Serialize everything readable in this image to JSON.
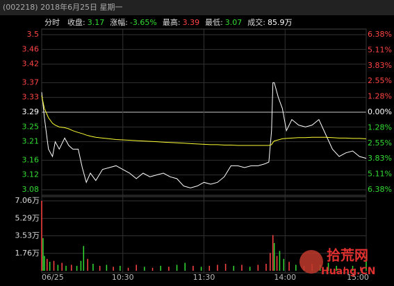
{
  "header": {
    "title": "(002218) 2018年6月25日 星期一"
  },
  "info": [
    {
      "label": "分时",
      "color": "#ffffff"
    },
    {
      "label": "收盘:",
      "value": "3.17",
      "color": "#33dd33"
    },
    {
      "label": "涨幅:",
      "value": "-3.65%",
      "color": "#33dd33"
    },
    {
      "label": "最高:",
      "value": "3.39",
      "color": "#ff4444"
    },
    {
      "label": "最低:",
      "value": "3.07",
      "color": "#33dd33"
    },
    {
      "label": "成交:",
      "value": "85.9万",
      "color": "#ffffff"
    }
  ],
  "watermark": {
    "main": "拾荒网",
    "sub": "Huang.CN"
  },
  "chart_data": [
    {
      "type": "line",
      "x": [
        0,
        2,
        5,
        8,
        10,
        13,
        17,
        20,
        23,
        27,
        30,
        33,
        36,
        40,
        45,
        50,
        55,
        60,
        65,
        70,
        75,
        80,
        85,
        90,
        95,
        100,
        105,
        110,
        115,
        120,
        125,
        130,
        135,
        140,
        145,
        150,
        155,
        160,
        165,
        168,
        170,
        171,
        172,
        175,
        178,
        181,
        185,
        190,
        195,
        200,
        205,
        210,
        215,
        220,
        225,
        230,
        235,
        240
      ],
      "series": [
        {
          "color": "#ffffff",
          "values": [
            3.344,
            3.275,
            3.19,
            3.17,
            3.21,
            3.19,
            3.22,
            3.2,
            3.19,
            3.19,
            3.14,
            3.1,
            3.125,
            3.105,
            3.135,
            3.14,
            3.145,
            3.135,
            3.125,
            3.11,
            3.125,
            3.115,
            3.12,
            3.125,
            3.115,
            3.11,
            3.09,
            3.085,
            3.09,
            3.1,
            3.095,
            3.1,
            3.115,
            3.145,
            3.145,
            3.14,
            3.145,
            3.145,
            3.15,
            3.155,
            3.24,
            3.37,
            3.37,
            3.33,
            3.3,
            3.24,
            3.27,
            3.255,
            3.25,
            3.255,
            3.27,
            3.23,
            3.19,
            3.17,
            3.18,
            3.185,
            3.17,
            3.165
          ]
        },
        {
          "color": "#ffff33",
          "values": [
            3.335,
            3.3,
            3.275,
            3.26,
            3.255,
            3.25,
            3.248,
            3.245,
            3.24,
            3.235,
            3.232,
            3.228,
            3.225,
            3.222,
            3.22,
            3.218,
            3.216,
            3.215,
            3.214,
            3.213,
            3.212,
            3.211,
            3.21,
            3.209,
            3.208,
            3.207,
            3.206,
            3.205,
            3.204,
            3.203,
            3.202,
            3.202,
            3.201,
            3.201,
            3.2,
            3.2,
            3.2,
            3.2,
            3.2,
            3.2,
            3.202,
            3.208,
            3.212,
            3.215,
            3.218,
            3.219,
            3.22,
            3.221,
            3.221,
            3.222,
            3.222,
            3.222,
            3.221,
            3.22,
            3.22,
            3.219,
            3.219,
            3.218
          ]
        }
      ],
      "xlim": [
        0,
        240
      ],
      "xticks": [
        {
          "value": 0,
          "label": "06/25"
        },
        {
          "value": 60,
          "label": "10:30"
        },
        {
          "value": 120,
          "label": "11:30"
        },
        {
          "value": 180,
          "label": "14:00"
        },
        {
          "value": 240,
          "label": "15:00"
        }
      ],
      "ylim": [
        3.08,
        3.5
      ],
      "yticks": [
        3.5,
        3.46,
        3.42,
        3.37,
        3.33,
        3.29,
        3.25,
        3.21,
        3.16,
        3.12,
        3.08
      ],
      "y2lim": [
        -6.38,
        6.38
      ],
      "y2ticks": [
        {
          "value": 6.38,
          "label": "6.38%"
        },
        {
          "value": 5.11,
          "label": "5.11%"
        },
        {
          "value": 3.83,
          "label": "3.83%"
        },
        {
          "value": 2.55,
          "label": "2.55%"
        },
        {
          "value": 1.28,
          "label": "1.28%"
        },
        {
          "value": 0,
          "label": "0.00%"
        },
        {
          "value": -1.28,
          "label": "1.28%"
        },
        {
          "value": -2.55,
          "label": "2.55%"
        },
        {
          "value": -3.83,
          "label": "3.83%"
        },
        {
          "value": -5.11,
          "label": "5.11%"
        },
        {
          "value": -6.38,
          "label": "6.38%"
        }
      ],
      "up_color": "#ff4444",
      "down_color": "#33dd33",
      "flat_color": "#ffffff",
      "grid": true
    },
    {
      "type": "bar",
      "x": [
        0,
        1,
        2,
        4,
        6,
        9,
        12,
        15,
        18,
        22,
        26,
        29,
        31,
        34,
        38,
        43,
        48,
        53,
        58,
        64,
        70,
        76,
        82,
        88,
        94,
        100,
        106,
        112,
        118,
        124,
        130,
        136,
        142,
        148,
        154,
        160,
        166,
        169,
        171,
        172,
        174,
        176,
        179,
        183,
        188,
        194,
        200,
        206,
        212,
        218,
        224,
        230,
        236,
        240
      ],
      "values": [
        7.06,
        3.3,
        1.5,
        1.2,
        0.9,
        1.0,
        0.6,
        0.8,
        0.5,
        0.6,
        0.5,
        1.0,
        2.5,
        1.2,
        0.7,
        0.5,
        0.6,
        0.4,
        0.5,
        0.3,
        0.6,
        0.4,
        0.3,
        0.5,
        0.4,
        0.6,
        0.8,
        0.5,
        0.4,
        0.5,
        0.6,
        0.7,
        0.5,
        0.6,
        0.4,
        0.6,
        0.7,
        1.8,
        3.6,
        2.8,
        1.5,
        2.0,
        1.2,
        0.9,
        0.6,
        0.5,
        0.7,
        0.6,
        0.8,
        0.5,
        0.4,
        0.5,
        0.4,
        1.6
      ],
      "colors": [
        "#ff4444",
        "#33dd33",
        "#33dd33",
        "#ff4444",
        "#33dd33",
        "#ff4444",
        "#33dd33",
        "#ff4444",
        "#33dd33",
        "#ff4444",
        "#33dd33",
        "#33dd33",
        "#33dd33",
        "#ff4444",
        "#33dd33",
        "#ff4444",
        "#33dd33",
        "#ff4444",
        "#33dd33",
        "#ff4444",
        "#ff4444",
        "#33dd33",
        "#ff4444",
        "#33dd33",
        "#ff4444",
        "#33dd33",
        "#33dd33",
        "#ff4444",
        "#33dd33",
        "#ff4444",
        "#ff4444",
        "#ff4444",
        "#33dd33",
        "#ff4444",
        "#33dd33",
        "#ff4444",
        "#ff4444",
        "#ff4444",
        "#ff4444",
        "#33dd33",
        "#ff4444",
        "#33dd33",
        "#33dd33",
        "#ff4444",
        "#33dd33",
        "#ff4444",
        "#ff4444",
        "#33dd33",
        "#33dd33",
        "#33dd33",
        "#ff4444",
        "#33dd33",
        "#ff4444",
        "#33dd33"
      ],
      "xlim": [
        0,
        240
      ],
      "ylim": [
        0,
        7.06
      ],
      "yticks": [
        {
          "value": 7.06,
          "label": "7.06万"
        },
        {
          "value": 5.29,
          "label": "5.29万"
        },
        {
          "value": 3.53,
          "label": "3.53万"
        },
        {
          "value": 1.76,
          "label": "1.76万"
        }
      ],
      "grid": true
    }
  ]
}
